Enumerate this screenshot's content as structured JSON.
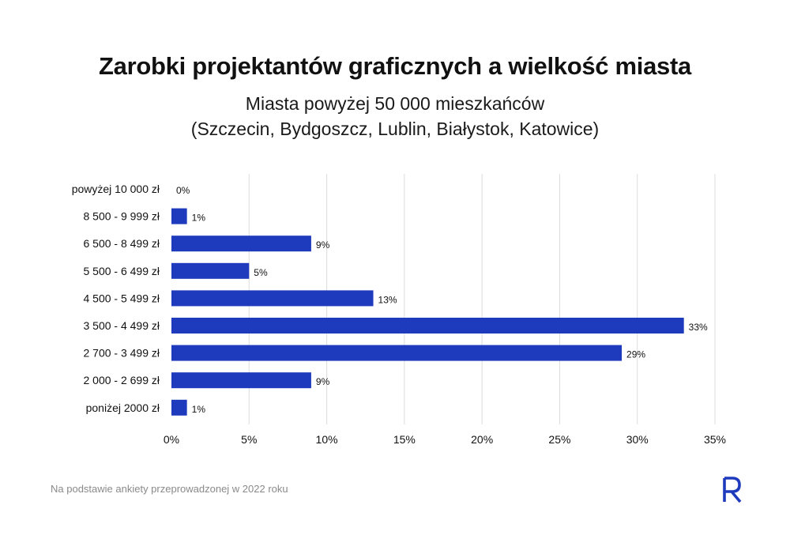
{
  "title": "Zarobki projektantów graficznych a wielkość miasta",
  "subtitle_line1": "Miasta powyżej 50 000 mieszkańców",
  "subtitle_line2": "(Szczecin, Bydgoszcz, Lublin, Białystok, Katowice)",
  "footnote": "Na podstawie ankiety przeprowadzonej w 2022 roku",
  "logo_icon": "r-letter-logo-icon",
  "colors": {
    "bar": "#1f3bbd",
    "grid": "#dcdcdc",
    "logo": "#1f3bbd"
  },
  "chart_data": {
    "type": "bar",
    "orientation": "horizontal",
    "categories": [
      "powyżej 10 000 zł",
      "8 500 - 9 999 zł",
      "6 500 - 8 499 zł",
      "5 500 - 6 499 zł",
      "4 500 - 5 499 zł",
      "3 500 - 4 499 zł",
      "2 700 - 3 499 zł",
      "2 000 - 2 699 zł",
      "poniżej 2000 zł"
    ],
    "values": [
      0,
      1,
      9,
      5,
      13,
      33,
      29,
      9,
      1
    ],
    "data_labels": [
      "0%",
      "1%",
      "9%",
      "5%",
      "13%",
      "33%",
      "29%",
      "9%",
      "1%"
    ],
    "x_ticks": [
      "0%",
      "5%",
      "10%",
      "15%",
      "20%",
      "25%",
      "30%",
      "35%"
    ],
    "xlim": [
      0,
      35
    ],
    "grid": "vertical",
    "legend": "none"
  }
}
